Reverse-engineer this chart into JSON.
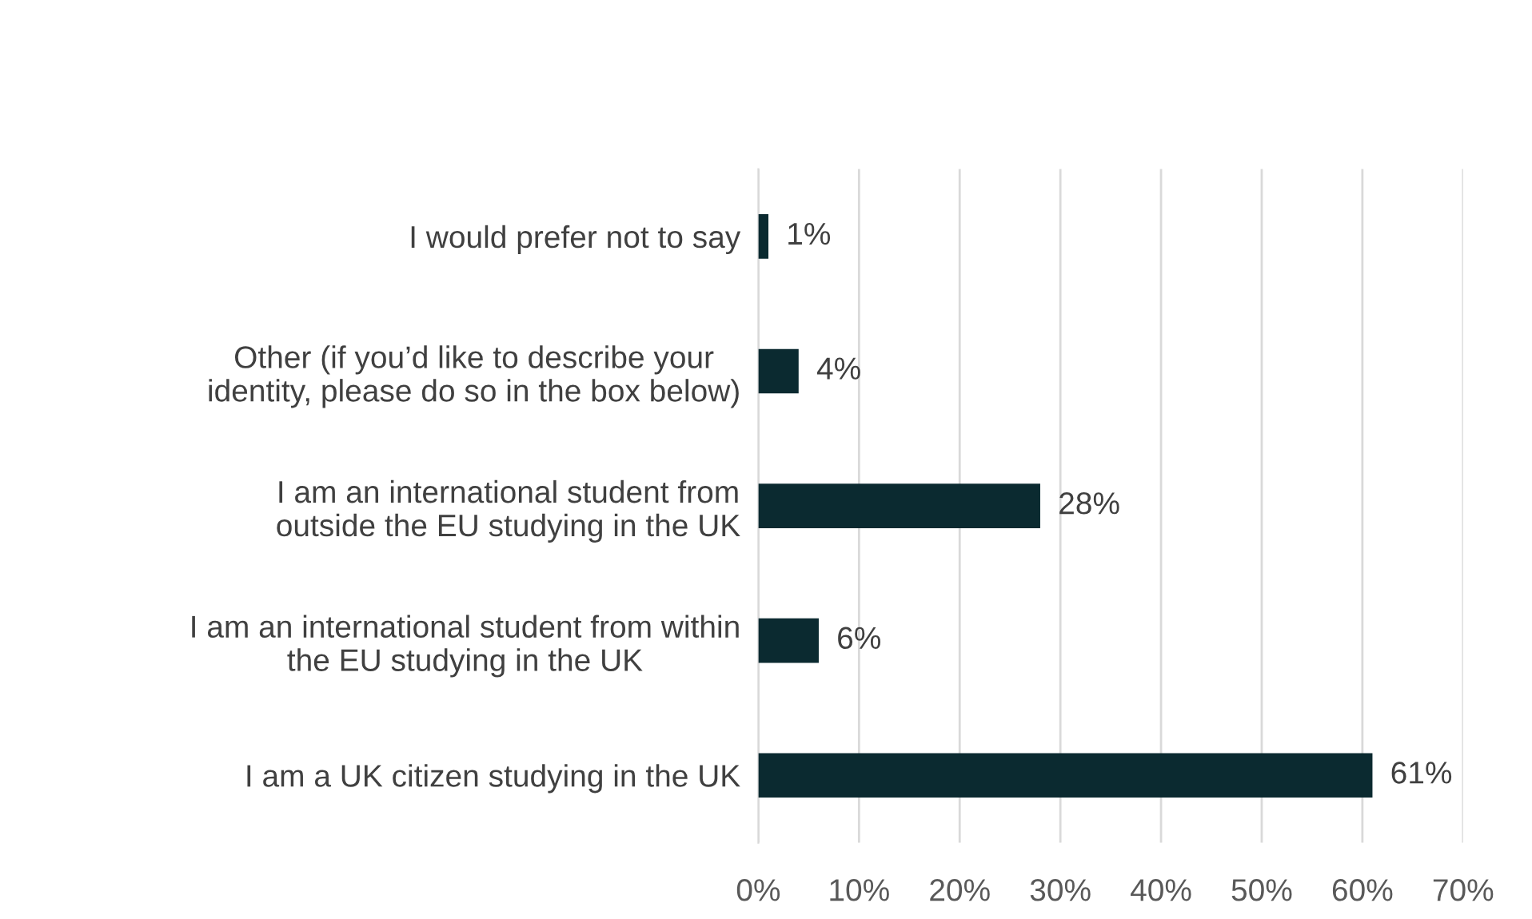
{
  "chart_data": {
    "type": "bar",
    "orientation": "horizontal",
    "categories": [
      "I would prefer not to say",
      "Other (if you’d like to describe your\nidentity, please do so in the box below)",
      "I am an international student from\noutside the EU studying in the UK",
      "I am an international student from within\nthe EU studying in the UK",
      "I am a UK citizen studying in the UK"
    ],
    "values": [
      1,
      4,
      28,
      6,
      61
    ],
    "value_labels": [
      "1%",
      "4%",
      "28%",
      "6%",
      "61%"
    ],
    "color": "#0b2a30",
    "xlim": [
      0,
      70
    ],
    "xticks": [
      {
        "value": 0,
        "label": "0%"
      },
      {
        "value": 10,
        "label": "10%"
      },
      {
        "value": 20,
        "label": "20%"
      },
      {
        "value": 30,
        "label": "30%"
      },
      {
        "value": 40,
        "label": "40%"
      },
      {
        "value": 50,
        "label": "50%"
      },
      {
        "value": 60,
        "label": "60%"
      },
      {
        "value": 70,
        "label": "70%"
      }
    ],
    "grid": "x",
    "legend": false
  }
}
